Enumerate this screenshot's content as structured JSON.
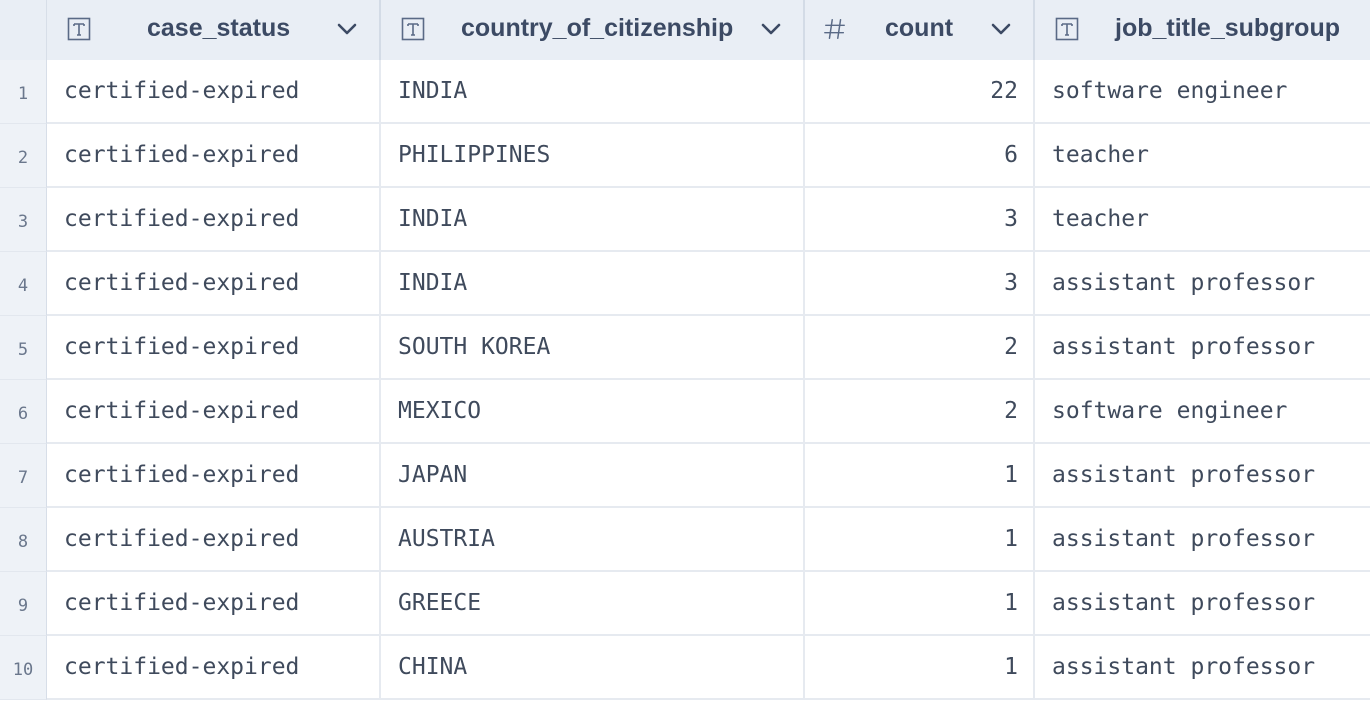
{
  "columns": [
    {
      "name": "case_status",
      "type_icon": "text-type-icon",
      "has_menu": true
    },
    {
      "name": "country_of_citizenship",
      "type_icon": "text-type-icon",
      "has_menu": true
    },
    {
      "name": "count",
      "type_icon": "number-type-icon",
      "has_menu": true
    },
    {
      "name": "job_title_subgroup",
      "type_icon": "text-type-icon",
      "has_menu": false
    }
  ],
  "rows": [
    {
      "n": "1",
      "case_status": "certified-expired",
      "country": "INDIA",
      "count": "22",
      "job": "software engineer"
    },
    {
      "n": "2",
      "case_status": "certified-expired",
      "country": "PHILIPPINES",
      "count": "6",
      "job": "teacher"
    },
    {
      "n": "3",
      "case_status": "certified-expired",
      "country": "INDIA",
      "count": "3",
      "job": "teacher"
    },
    {
      "n": "4",
      "case_status": "certified-expired",
      "country": "INDIA",
      "count": "3",
      "job": "assistant professor"
    },
    {
      "n": "5",
      "case_status": "certified-expired",
      "country": "SOUTH KOREA",
      "count": "2",
      "job": "assistant professor"
    },
    {
      "n": "6",
      "case_status": "certified-expired",
      "country": "MEXICO",
      "count": "2",
      "job": "software engineer"
    },
    {
      "n": "7",
      "case_status": "certified-expired",
      "country": "JAPAN",
      "count": "1",
      "job": "assistant professor"
    },
    {
      "n": "8",
      "case_status": "certified-expired",
      "country": "AUSTRIA",
      "count": "1",
      "job": "assistant professor"
    },
    {
      "n": "9",
      "case_status": "certified-expired",
      "country": "GREECE",
      "count": "1",
      "job": "assistant professor"
    },
    {
      "n": "10",
      "case_status": "certified-expired",
      "country": "CHINA",
      "count": "1",
      "job": "assistant professor"
    }
  ],
  "colors": {
    "header_bg": "#e9eef5",
    "rownum_bg": "#eef2f7",
    "grid_line": "#e6eaf0",
    "text": "#3f4a5c",
    "header_text": "#3c4a64"
  }
}
